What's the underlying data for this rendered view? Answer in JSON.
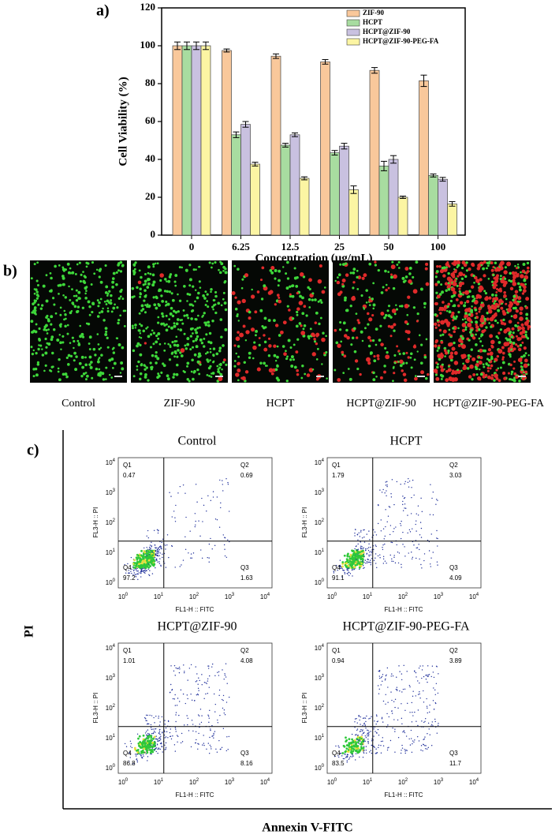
{
  "chart_data": {
    "type": "bar",
    "panel_label": "a)",
    "x_label": "Concentration (μg/mL)",
    "y_label": "Cell Viability (%)",
    "categories": [
      "0",
      "6.25",
      "12.5",
      "25",
      "50",
      "100"
    ],
    "series": [
      {
        "name": "ZIF-90",
        "color": "#f9c89b",
        "values": [
          100,
          97.5,
          94.5,
          91.5,
          87,
          81.5
        ],
        "errors": [
          2,
          0.8,
          1.2,
          1.2,
          1.5,
          3
        ]
      },
      {
        "name": "HCPT",
        "color": "#a8dca0",
        "values": [
          100,
          53,
          47.5,
          43.5,
          36.5,
          31.5
        ],
        "errors": [
          2,
          1.5,
          1,
          1.2,
          2.5,
          0.8
        ]
      },
      {
        "name": "HCPT@ZIF-90",
        "color": "#c9c1e0",
        "values": [
          100,
          58.5,
          53,
          47,
          40,
          29.5
        ],
        "errors": [
          2,
          1.5,
          1,
          1.5,
          2,
          1
        ]
      },
      {
        "name": "HCPT@ZIF-90-PEG-FA",
        "color": "#fcf5a3",
        "values": [
          100,
          37.5,
          30,
          24,
          20,
          16.5
        ],
        "errors": [
          2,
          1,
          0.8,
          2,
          0.6,
          1.2
        ]
      }
    ],
    "ylim": [
      0,
      120
    ],
    "yticks": [
      0,
      20,
      40,
      60,
      80,
      100,
      120
    ],
    "legend": "upper right"
  },
  "images": {
    "panel_label": "b)",
    "labels": [
      "Control",
      "ZIF-90",
      "HCPT",
      "HCPT@ZIF-90",
      "HCPT@ZIF-90-PEG-FA"
    ]
  },
  "flow": {
    "panel_label": "c)",
    "y_title": "PI",
    "x_title": "Annexin V-FITC",
    "x_axis": "FL1-H :: FITC",
    "y_axis": "FL3-H :: PI",
    "tick_base": "10",
    "tick_exps": [
      "0",
      "1",
      "2",
      "3",
      "4"
    ],
    "quadrant_names": [
      "Q1",
      "Q2",
      "Q3",
      "Q4"
    ],
    "plots": [
      {
        "title": "Control",
        "quadrants": [
          0.47,
          0.69,
          1.63,
          97.2
        ]
      },
      {
        "title": "HCPT",
        "quadrants": [
          1.79,
          3.03,
          4.09,
          91.1
        ]
      },
      {
        "title": "HCPT@ZIF-90",
        "quadrants": [
          1.01,
          4.08,
          8.16,
          86.8
        ]
      },
      {
        "title": "HCPT@ZIF-90-PEG-FA",
        "quadrants": [
          0.94,
          3.89,
          11.7,
          83.5
        ]
      }
    ]
  }
}
